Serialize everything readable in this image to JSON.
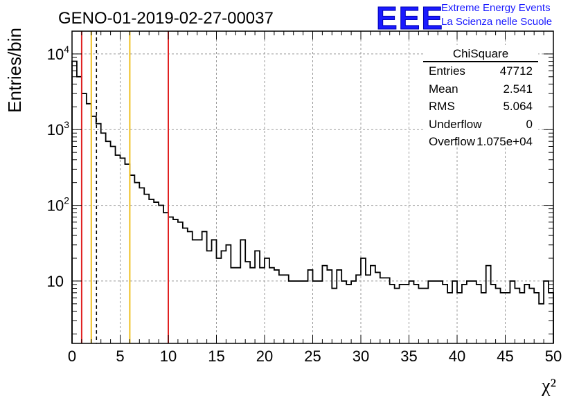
{
  "chart_data": {
    "type": "histogram",
    "title": "GENO-01-2019-02-27-00037",
    "xlabel": "χ²",
    "ylabel": "Entries/bin",
    "xlim": [
      0,
      50
    ],
    "ylim": [
      1.5,
      20000
    ],
    "yscale": "log",
    "grid": true,
    "bin_width": 0.5,
    "x_ticks": [
      "0",
      "5",
      "10",
      "15",
      "20",
      "25",
      "30",
      "35",
      "40",
      "45",
      "50"
    ],
    "y_ticks": [
      {
        "value": 10,
        "base": "10",
        "exp": ""
      },
      {
        "value": 100,
        "base": "10",
        "exp": "2"
      },
      {
        "value": 1000,
        "base": "10",
        "exp": "3"
      },
      {
        "value": 10000,
        "base": "10",
        "exp": "4"
      }
    ],
    "bin_values": [
      8000,
      5000,
      3000,
      2200,
      1500,
      1200,
      900,
      700,
      600,
      460,
      420,
      350,
      250,
      200,
      170,
      140,
      120,
      110,
      100,
      80,
      70,
      65,
      60,
      50,
      45,
      35,
      35,
      45,
      25,
      35,
      20,
      25,
      30,
      15,
      15,
      35,
      18,
      15,
      25,
      15,
      20,
      15,
      14,
      12,
      12,
      10,
      10,
      10,
      10,
      14,
      10,
      10,
      16,
      14,
      8,
      14,
      10,
      9,
      10,
      12,
      20,
      12,
      16,
      13,
      11,
      11,
      9,
      8,
      9,
      9,
      10,
      9,
      8,
      8,
      10,
      10,
      10,
      9,
      7,
      10,
      7,
      9,
      10,
      10,
      9,
      7,
      16,
      9,
      8,
      7,
      7,
      10,
      8,
      7,
      9,
      8,
      7,
      5,
      10,
      7
    ],
    "vertical_lines": [
      {
        "x": 1,
        "color": "#e02020",
        "style": "solid"
      },
      {
        "x": 2,
        "color": "#f0c020",
        "style": "solid"
      },
      {
        "x": 2.541,
        "color": "#000000",
        "style": "dashed"
      },
      {
        "x": 6,
        "color": "#f0c020",
        "style": "solid"
      },
      {
        "x": 10,
        "color": "#e02020",
        "style": "solid"
      }
    ]
  },
  "stats": {
    "title": "ChiSquare",
    "rows": [
      {
        "label": "Entries",
        "value": "47712"
      },
      {
        "label": "Mean",
        "value": "2.541"
      },
      {
        "label": "RMS",
        "value": "5.064"
      },
      {
        "label": "Underflow",
        "value": "0"
      },
      {
        "label": "Overflow",
        "value": "1.075e+04"
      }
    ]
  },
  "logo": {
    "mark": "EEE",
    "line1": "Extreme Energy Events",
    "line2": "La Scienza nelle Scuole",
    "color": "#1a1aff"
  }
}
